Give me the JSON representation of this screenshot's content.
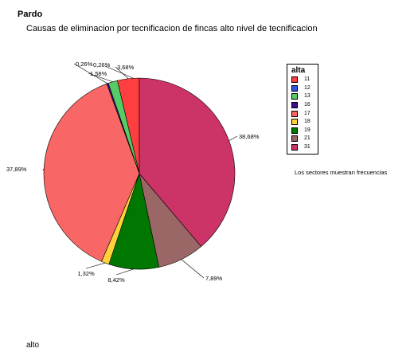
{
  "header": {
    "title": "Pardo",
    "subtitle": "Causas de eliminacion por tecnificacion de fincas alto nivel de  tecnificacion"
  },
  "legend": {
    "title": "alta",
    "note": "Los sectores muestran frecuencias"
  },
  "footer": {
    "variable_label": "alto"
  },
  "chart_data": {
    "type": "pie",
    "legend_title": "alta",
    "legend_position": "right",
    "slices": [
      {
        "category": "11",
        "percent": 3.68,
        "label": "3,68%",
        "color": "#ff3f3f"
      },
      {
        "category": "12",
        "percent": 0.0,
        "label": "",
        "color": "#3355e0"
      },
      {
        "category": "13",
        "percent": 1.58,
        "label": "1,58%",
        "color": "#55cc66"
      },
      {
        "category": "16",
        "percent": 0.26,
        "label": "0,26%",
        "color": "#3a0f8a"
      },
      {
        "category": "17",
        "percent": 37.89,
        "label": "37,89%",
        "color": "#f86666"
      },
      {
        "category": "18",
        "percent": 1.32,
        "label": "1,32%",
        "color": "#ffd23a"
      },
      {
        "category": "19",
        "percent": 8.42,
        "label": "8,42%",
        "color": "#007700"
      },
      {
        "category": "21",
        "percent": 7.89,
        "label": "7,89%",
        "color": "#9a6666"
      },
      {
        "category": "31",
        "percent": 38.68,
        "label": "38,68%",
        "color": "#cc3366"
      }
    ],
    "extra_label": "0,26%"
  }
}
